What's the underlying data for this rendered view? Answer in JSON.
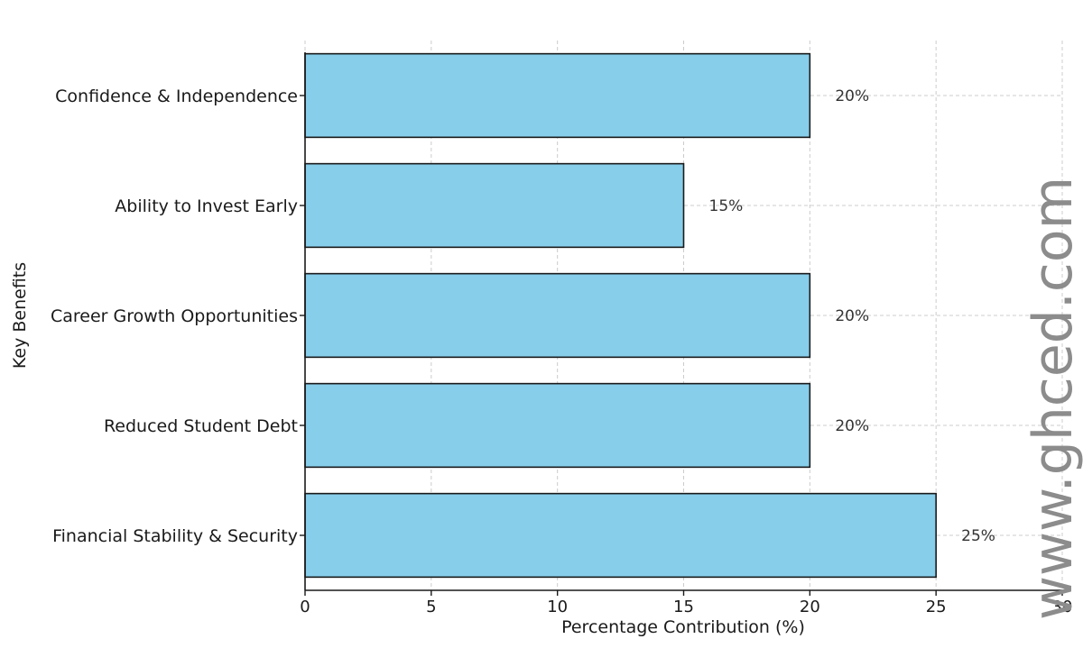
{
  "chart_data": {
    "type": "bar",
    "orientation": "horizontal",
    "title": "",
    "xlabel": "Percentage Contribution (%)",
    "ylabel": "Key Benefits",
    "xlim": [
      0,
      30
    ],
    "xticks": [
      0,
      5,
      10,
      15,
      20,
      25,
      30
    ],
    "grid": true,
    "categories": [
      "Financial Stability & Security",
      "Reduced Student Debt",
      "Career Growth Opportunities",
      "Ability to Invest Early",
      "Confidence & Independence"
    ],
    "values": [
      25,
      20,
      20,
      15,
      20
    ],
    "data_labels": [
      "25%",
      "20%",
      "20%",
      "15%",
      "20%"
    ],
    "bar_color": "#87CEEB",
    "edge_color": "#1a1a1a"
  },
  "watermark": {
    "text": "www.ghced.com",
    "color": "#8c8c8c"
  }
}
